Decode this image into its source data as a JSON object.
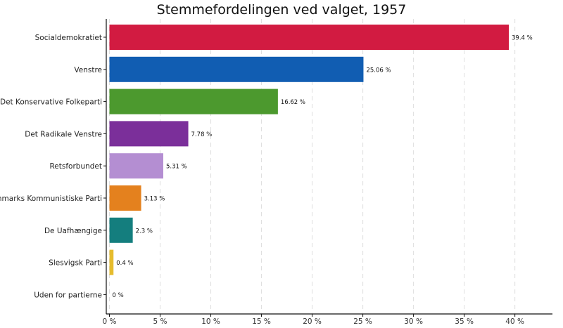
{
  "chart_data": {
    "type": "bar",
    "orientation": "horizontal",
    "title": "Stemmefordelingen ved valget, 1957",
    "xlabel": "",
    "ylabel": "",
    "xlim": [
      0,
      44
    ],
    "x_ticks": [
      0,
      5,
      10,
      15,
      20,
      25,
      30,
      35,
      40
    ],
    "x_tick_labels": [
      "0 %",
      "5 %",
      "10 %",
      "15 %",
      "20 %",
      "25 %",
      "30 %",
      "35 %",
      "40 %"
    ],
    "grid": "vertical dashed",
    "legend": "none",
    "categories": [
      "Socialdemokratiet",
      "Venstre",
      "Det Konservative Folkeparti",
      "Det Radikale Venstre",
      "Retsforbundet",
      "Danmarks Kommunistiske Parti",
      "De Uafhængige",
      "Slesvigsk Parti",
      "Uden for partierne"
    ],
    "values": [
      39.4,
      25.06,
      16.62,
      7.78,
      5.31,
      3.13,
      2.3,
      0.4,
      0
    ],
    "value_labels": [
      "39.4 %",
      "25.06 %",
      "16.62 %",
      "7.78 %",
      "5.31 %",
      "3.13 %",
      "2.3 %",
      "0.4 %",
      "0 %"
    ],
    "colors": [
      "#d21b41",
      "#115db2",
      "#4c992e",
      "#7b2f9a",
      "#b48ed2",
      "#e4811e",
      "#147e7e",
      "#e6bc2e",
      "#999999"
    ]
  }
}
